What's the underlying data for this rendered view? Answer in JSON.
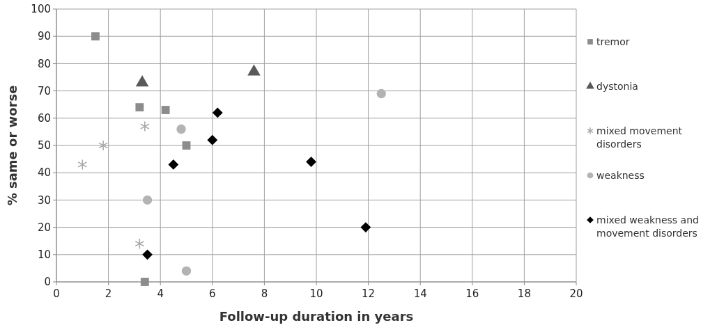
{
  "chart_data": {
    "type": "scatter",
    "xlabel": "Follow-up duration in years",
    "ylabel": "% same or worse",
    "xlim": [
      0,
      20
    ],
    "xticks": [
      0,
      2,
      4,
      6,
      8,
      10,
      12,
      14,
      16,
      18,
      20
    ],
    "ylim": [
      0,
      100
    ],
    "yticks": [
      0,
      10,
      20,
      30,
      40,
      50,
      60,
      70,
      80,
      90,
      100
    ],
    "grid": true,
    "legend": "right",
    "series": [
      {
        "name": "tremor",
        "color": "#8c8c8c",
        "marker": "square",
        "x": [
          1.5,
          3.2,
          4.2,
          5,
          3.4
        ],
        "values": [
          90,
          64,
          63,
          50,
          0
        ]
      },
      {
        "name": "dystonia",
        "color": "#595959",
        "marker": "triangle",
        "x": [
          3.3,
          7.6
        ],
        "values": [
          73,
          77
        ]
      },
      {
        "name": "mixed movement disorders",
        "color": "#a6a6a6",
        "marker": "cross",
        "x": [
          1,
          1.8,
          3.4,
          3.2
        ],
        "values": [
          43,
          50,
          57,
          14
        ]
      },
      {
        "name": "weakness",
        "color": "#b3b3b3",
        "marker": "circle",
        "x": [
          4.8,
          3.5,
          5,
          12.5
        ],
        "values": [
          56,
          30,
          4,
          69
        ]
      },
      {
        "name": "mixed weakness and movement disorders",
        "color": "#000000",
        "marker": "diamond",
        "x": [
          3.5,
          4.5,
          6,
          6.2,
          9.8,
          11.9
        ],
        "values": [
          10,
          43,
          52,
          62,
          44,
          20
        ]
      }
    ]
  }
}
